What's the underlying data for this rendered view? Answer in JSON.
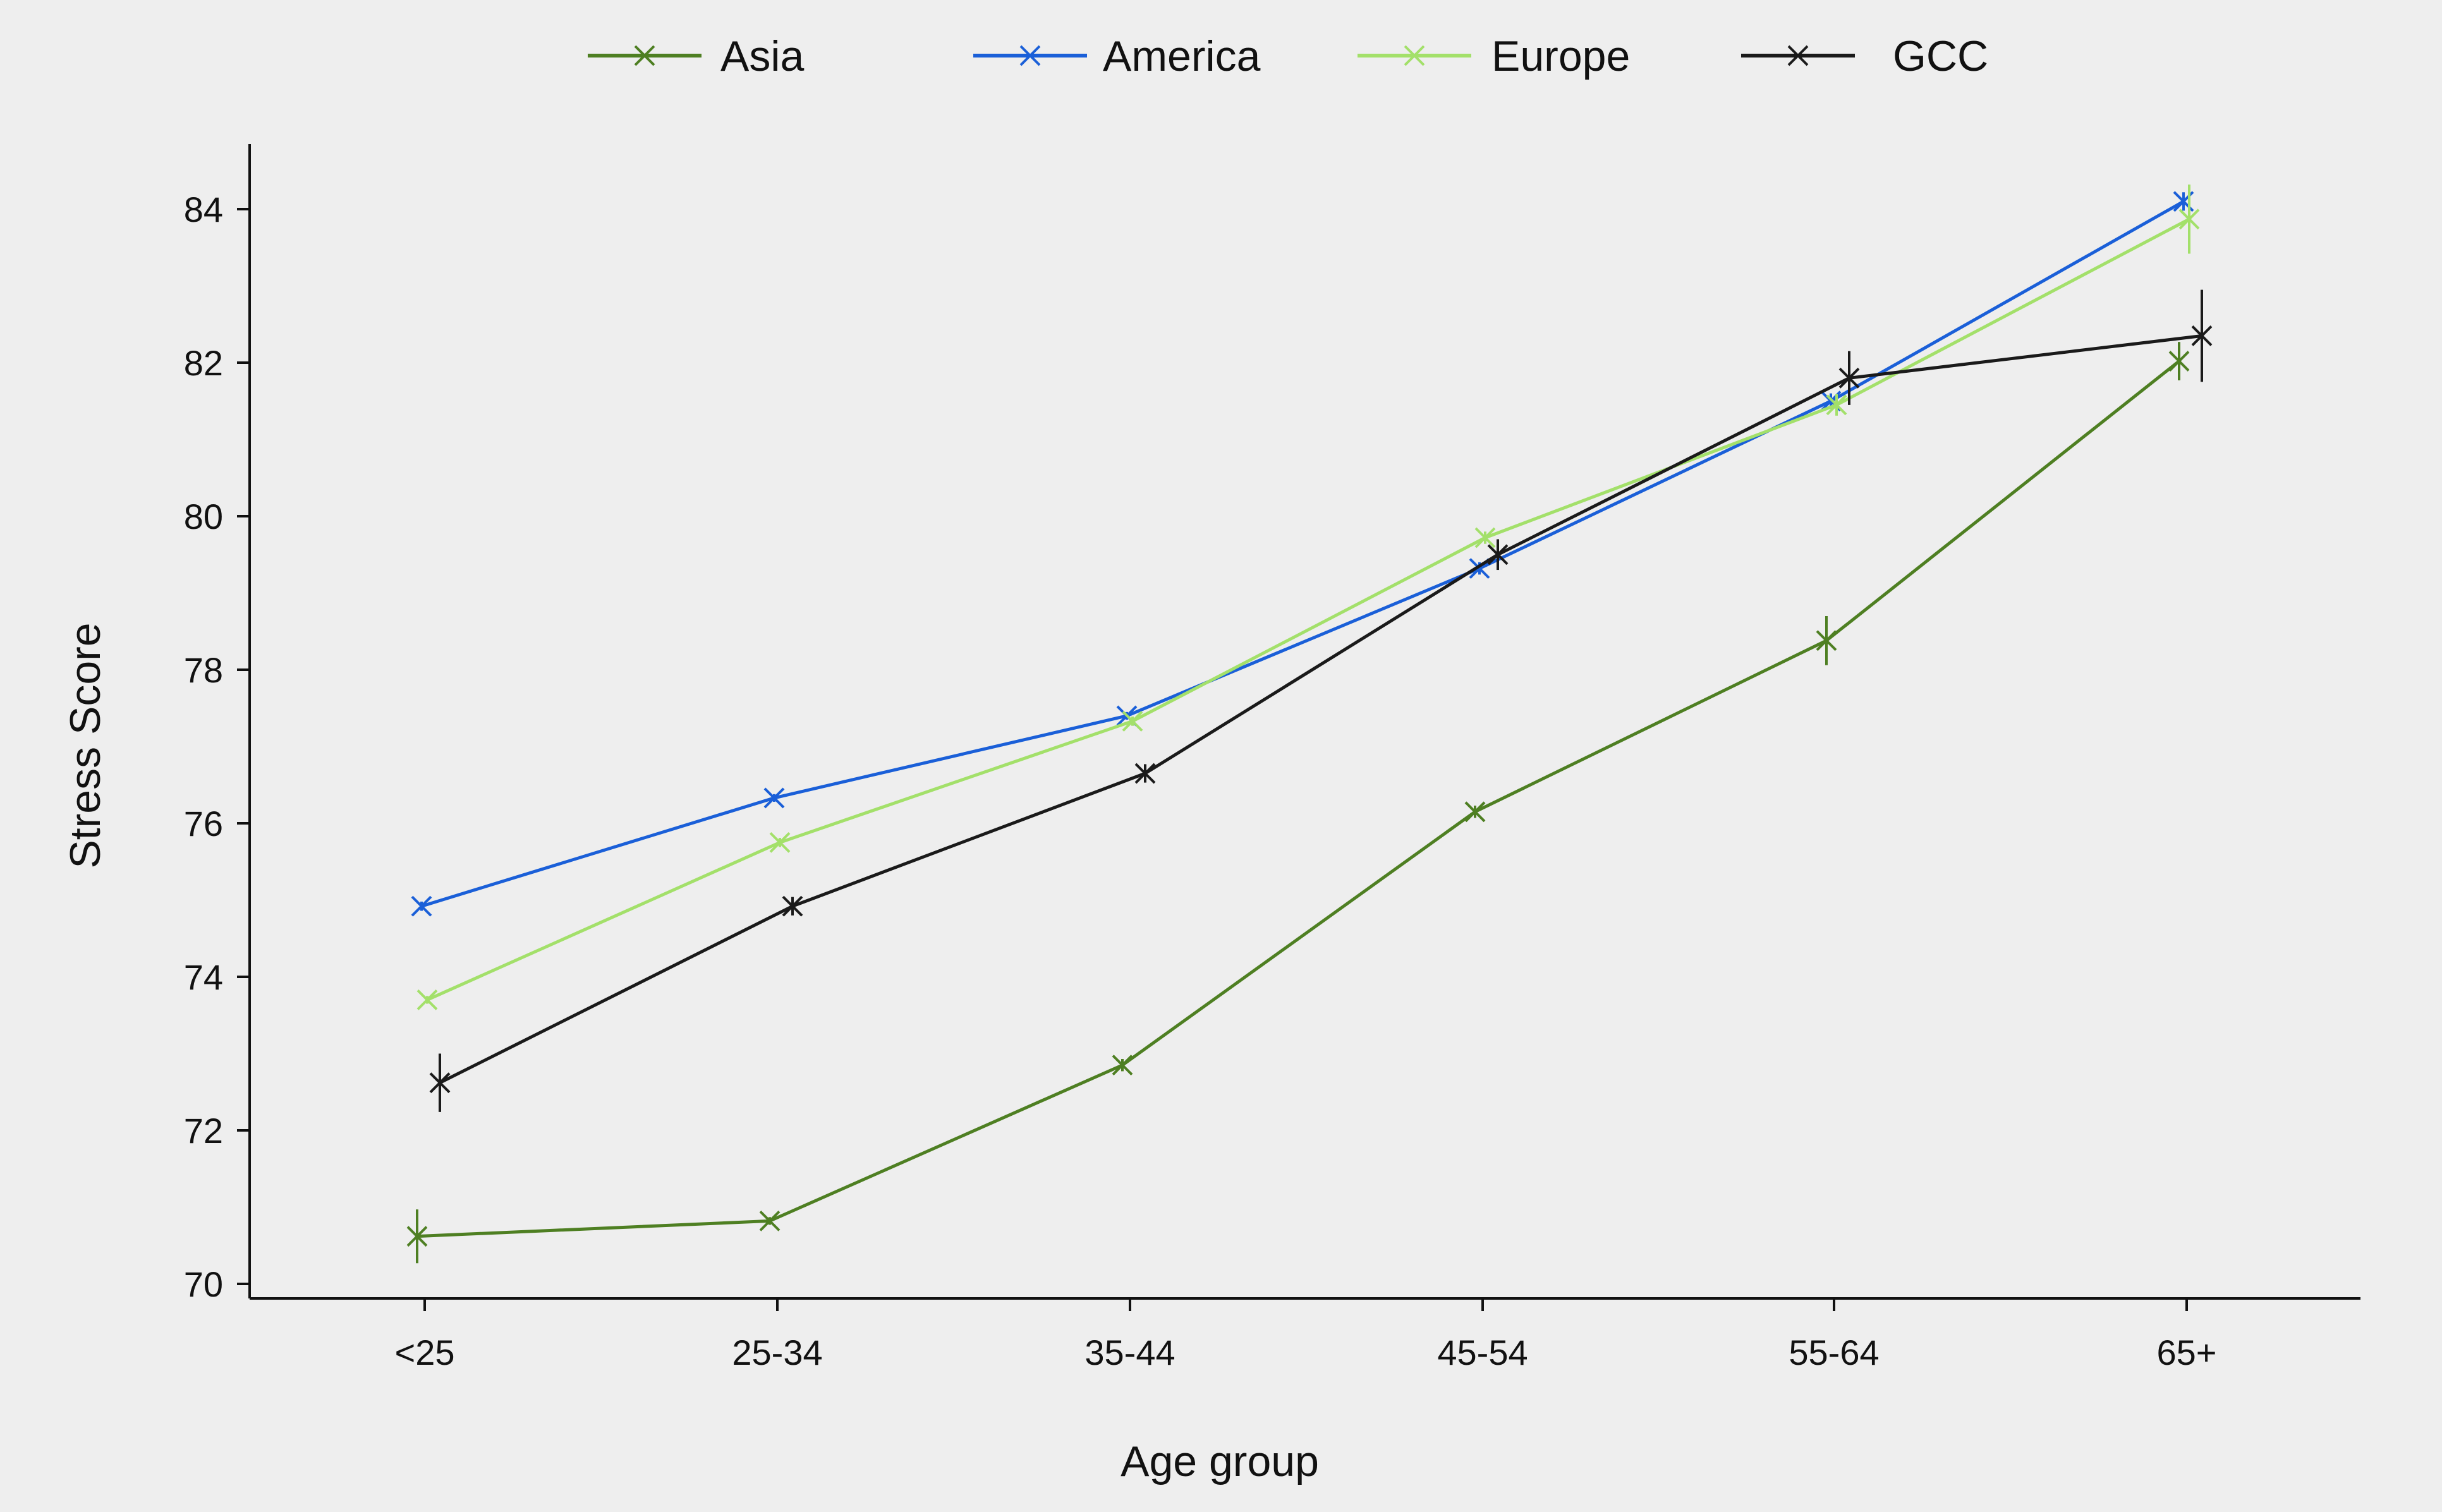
{
  "chart_data": {
    "type": "line",
    "xlabel": "Age group",
    "ylabel": "Stress Score",
    "ylim": [
      70,
      84.8
    ],
    "yticks": [
      70,
      72,
      74,
      76,
      78,
      80,
      82,
      84
    ],
    "grid": false,
    "legend_position": "top",
    "categories": [
      "<25",
      "25-34",
      "35-44",
      "45-54",
      "55-64",
      "65+"
    ],
    "series": [
      {
        "name": "Asia",
        "color": "#4e7f22",
        "values": [
          70.62,
          70.82,
          72.85,
          76.15,
          78.38,
          82.02
        ],
        "error": [
          0.35,
          0.05,
          0.08,
          0.08,
          0.32,
          0.25
        ]
      },
      {
        "name": "America",
        "color": "#1a5fd8",
        "values": [
          74.92,
          76.33,
          77.4,
          79.32,
          81.5,
          84.1
        ],
        "error": [
          0.06,
          0.05,
          0.05,
          0.08,
          0.1,
          0.12
        ]
      },
      {
        "name": "Europe",
        "color": "#a3e06a",
        "values": [
          73.7,
          75.75,
          77.33,
          79.72,
          81.45,
          83.87
        ],
        "error": [
          0.05,
          0.06,
          0.06,
          0.08,
          0.14,
          0.45
        ]
      },
      {
        "name": "GCC",
        "color": "#1a1a1a",
        "values": [
          72.62,
          74.92,
          76.65,
          79.5,
          81.8,
          82.35
        ],
        "error": [
          0.38,
          0.12,
          0.12,
          0.2,
          0.35,
          0.6
        ]
      }
    ]
  }
}
